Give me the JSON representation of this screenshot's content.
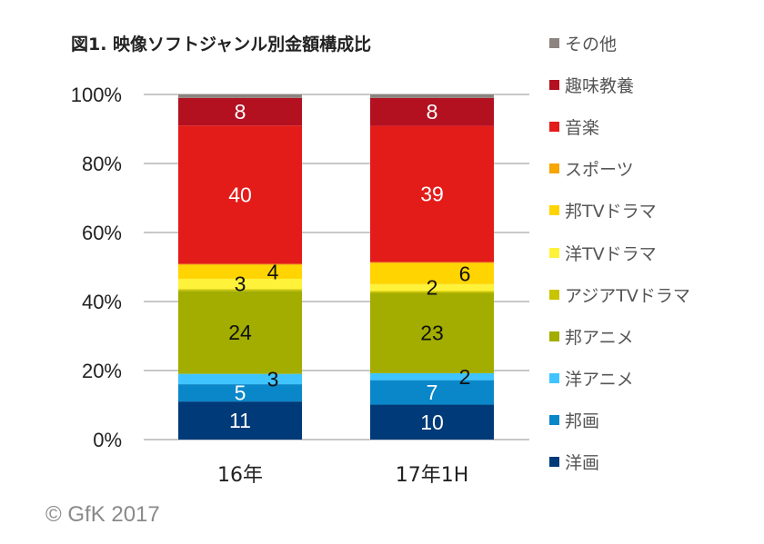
{
  "chart_data": {
    "type": "bar",
    "stacked": true,
    "percent_stacked": true,
    "title": "図1.  映像ソフトジャンル別金額構成比",
    "categories": [
      "16年",
      "17年1H"
    ],
    "ylim": [
      0,
      100
    ],
    "yticks": [
      "0%",
      "20%",
      "40%",
      "60%",
      "80%",
      "100%"
    ],
    "grid": true,
    "legend_position": "right",
    "series": [
      {
        "name": "洋画",
        "color": "#003a78",
        "values": [
          11,
          10
        ],
        "labels": [
          "11",
          "10"
        ],
        "label_color": "#ffffff"
      },
      {
        "name": "邦画",
        "color": "#0a87c9",
        "values": [
          5,
          7
        ],
        "labels": [
          "5",
          "7"
        ],
        "label_color": "#ffffff"
      },
      {
        "name": "洋アニメ",
        "color": "#40c4ff",
        "values": [
          3,
          2
        ],
        "labels": [
          "3",
          "2"
        ],
        "label_color": "#111111"
      },
      {
        "name": "邦アニメ",
        "color": "#a2ad00",
        "values": [
          24,
          23
        ],
        "labels": [
          "24",
          "23"
        ],
        "label_color": "#111111"
      },
      {
        "name": "アジアTVドラマ",
        "color": "#c9c400",
        "values": [
          0.5,
          0.5
        ],
        "labels": [
          null,
          null
        ],
        "label_color": "#111111"
      },
      {
        "name": "洋TVドラマ",
        "color": "#fff23a",
        "values": [
          3,
          2
        ],
        "labels": [
          "3",
          "2"
        ],
        "label_color": "#111111"
      },
      {
        "name": "邦TVドラマ",
        "color": "#ffd400",
        "values": [
          4,
          6
        ],
        "labels": [
          "4",
          "6"
        ],
        "label_color": "#111111"
      },
      {
        "name": "スポーツ",
        "color": "#f5a600",
        "values": [
          0.3,
          0.3
        ],
        "labels": [
          null,
          null
        ],
        "label_color": "#111111"
      },
      {
        "name": "音楽",
        "color": "#e31b19",
        "values": [
          40,
          39
        ],
        "labels": [
          "40",
          "39"
        ],
        "label_color": "#ffffff"
      },
      {
        "name": "趣味教養",
        "color": "#b31020",
        "values": [
          8,
          8
        ],
        "labels": [
          "8",
          "8"
        ],
        "label_color": "#ffffff"
      },
      {
        "name": "その他",
        "color": "#8c8480",
        "values": [
          1,
          1
        ],
        "labels": [
          null,
          null
        ],
        "label_color": "#ffffff"
      }
    ]
  },
  "copyright": "© GfK 2017"
}
